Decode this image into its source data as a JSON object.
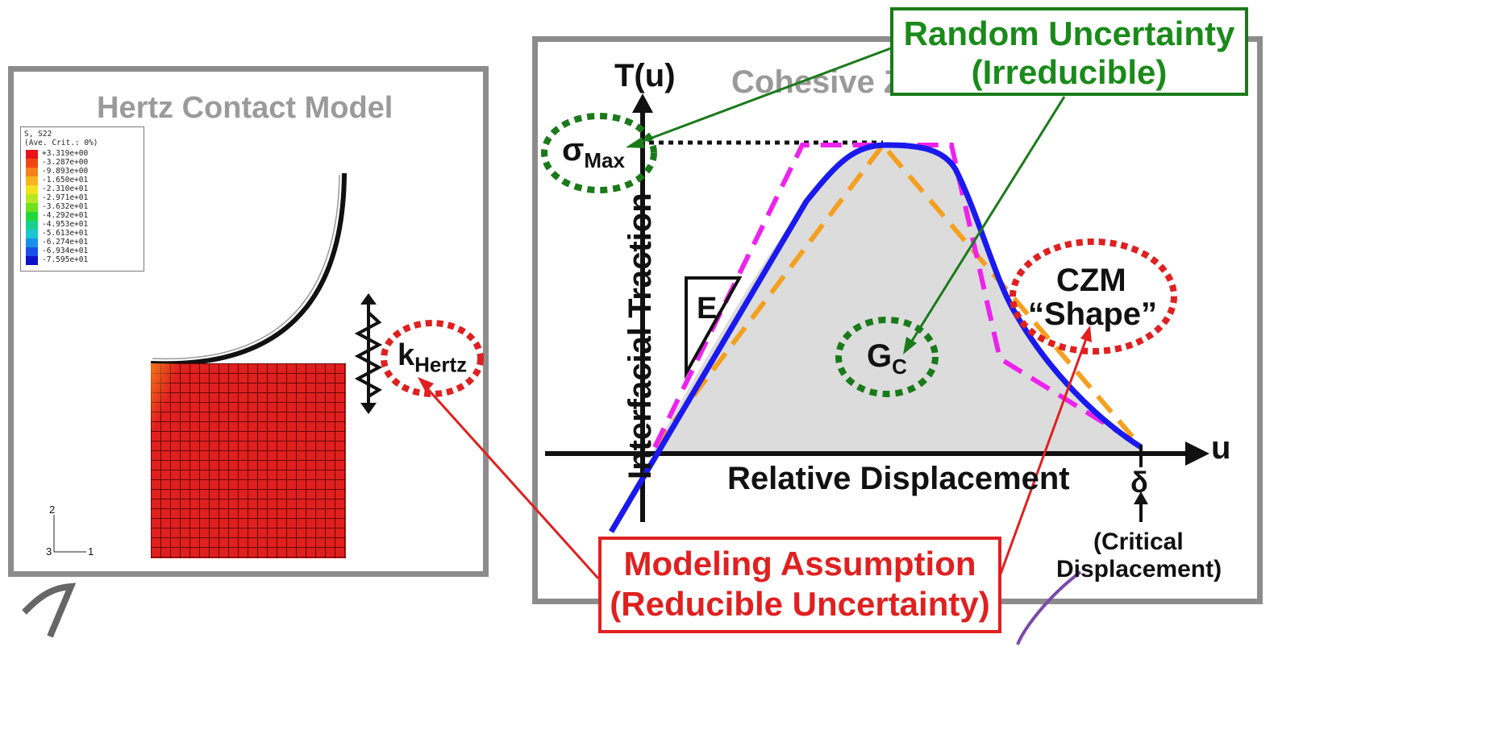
{
  "left_panel": {
    "title": "Hertz Contact Model",
    "legend": {
      "header": "S, S22\n(Ave. Crit.: 0%)",
      "values": [
        "+3.319e+00",
        "-3.287e+00",
        "-9.893e+00",
        "-1.650e+01",
        "-2.310e+01",
        "-2.971e+01",
        "-3.632e+01",
        "-4.292e+01",
        "-4.953e+01",
        "-5.613e+01",
        "-6.274e+01",
        "-6.934e+01",
        "-7.595e+01"
      ],
      "colors": [
        "#e8141c",
        "#f04a14",
        "#f5821a",
        "#f8b41e",
        "#f2e21c",
        "#b8e81e",
        "#6ee01e",
        "#20d83a",
        "#18d090",
        "#18c8d0",
        "#1890e8",
        "#1850e8",
        "#1010c8"
      ]
    },
    "axis_triad": {
      "y": "2",
      "x": "1",
      "z": "3"
    },
    "spring_label_main": "k",
    "spring_label_sub": "Hertz"
  },
  "right_panel": {
    "title": "Cohesive Zone Model",
    "y_axis_symbol": "T(u)",
    "y_axis_label": "Interfacial Traction",
    "x_axis_label": "Relative Displacement",
    "x_axis_symbol": "u",
    "sigma_main": "σ",
    "sigma_sub": "Max",
    "stiffness_label": "E",
    "energy_main": "G",
    "energy_sub": "C",
    "delta_symbol": "δ",
    "critical_line1": "(Critical",
    "critical_line2": "Displacement)",
    "czm_line1": "CZM",
    "czm_line2": "“Shape”"
  },
  "callouts": {
    "random_line1": "Random Uncertainty",
    "random_line2": "(Irreducible)",
    "modeling_line1": "Modeling Assumption",
    "modeling_line2": "(Reducible Uncertainty)"
  },
  "colors": {
    "green": "#1a8a1a",
    "red": "#e02020",
    "blue_curve": "#1a1aee",
    "magenta_dash": "#ee22ee",
    "orange_dash": "#f5a020",
    "panel_border": "#8c8c8c"
  }
}
